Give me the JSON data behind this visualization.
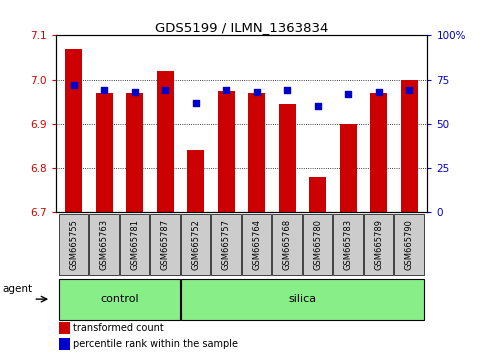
{
  "title": "GDS5199 / ILMN_1363834",
  "samples": [
    "GSM665755",
    "GSM665763",
    "GSM665781",
    "GSM665787",
    "GSM665752",
    "GSM665757",
    "GSM665764",
    "GSM665768",
    "GSM665780",
    "GSM665783",
    "GSM665789",
    "GSM665790"
  ],
  "transformed_count": [
    7.07,
    6.97,
    6.97,
    7.02,
    6.84,
    6.975,
    6.97,
    6.945,
    6.78,
    6.9,
    6.97,
    7.0
  ],
  "percentile_rank": [
    72,
    69,
    68,
    69,
    62,
    69,
    68,
    69,
    60,
    67,
    68,
    69
  ],
  "groups": [
    {
      "label": "control",
      "start": 0,
      "end": 3
    },
    {
      "label": "silica",
      "start": 4,
      "end": 11
    }
  ],
  "ylim_left": [
    6.7,
    7.1
  ],
  "ylim_right": [
    0,
    100
  ],
  "yticks_left": [
    6.7,
    6.8,
    6.9,
    7.0,
    7.1
  ],
  "yticks_right": [
    0,
    25,
    50,
    75,
    100
  ],
  "ytick_labels_right": [
    "0",
    "25",
    "50",
    "75",
    "100%"
  ],
  "bar_color": "#cc0000",
  "dot_color": "#0000cc",
  "bar_width": 0.55,
  "group_color": "#88ee88",
  "group_border_color": "#000000",
  "tick_bg_color": "#cccccc",
  "agent_label": "agent",
  "legend_items": [
    {
      "color": "#cc0000",
      "label": "transformed count"
    },
    {
      "color": "#0000cc",
      "label": "percentile rank within the sample"
    }
  ],
  "bar_bottom": 6.7,
  "n_samples": 12,
  "figsize": [
    4.83,
    3.54
  ],
  "dpi": 100
}
